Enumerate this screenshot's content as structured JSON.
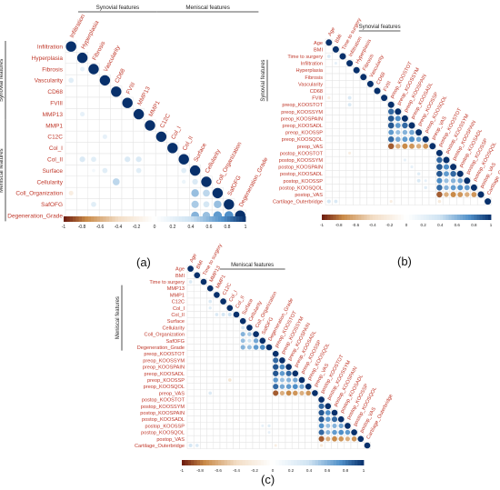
{
  "colors": {
    "positive_strong": "#08306b",
    "positive_mid": "#4f8fc8",
    "positive_light": "#cfe3f2",
    "neutral": "#ffffff",
    "negative_light": "#f2ddc5",
    "negative_mid": "#c98a48",
    "negative_strong": "#6b1a0e",
    "label_red": "#c0392b",
    "grid": "#e3e3e3"
  },
  "chart_data": [
    {
      "type": "heatmap",
      "panel_label": "(a)",
      "title": "",
      "variables": [
        "Infiltration",
        "Hyperplasia",
        "Fibrosis",
        "Vascularity",
        "CD68",
        "FVIII",
        "MMP13",
        "MMP1",
        "C12C",
        "Col_I",
        "Col_II",
        "Surface",
        "Cellularity",
        "Coll_Organization",
        "SafOFG",
        "Degeneration_Grade"
      ],
      "groups": [
        {
          "name": "Synovial features",
          "start": 0,
          "end": 6
        },
        {
          "name": "Meniscal features",
          "start": 7,
          "end": 15
        }
      ],
      "colorbar_ticks": [
        "-1",
        "-0.8",
        "-0.6",
        "-0.4",
        "-0.2",
        "0",
        "0.2",
        "0.4",
        "0.6",
        "0.8",
        "1"
      ],
      "cells": [
        [
          3,
          0,
          0.25
        ],
        [
          2,
          1,
          0.2
        ],
        [
          6,
          1,
          0.2
        ],
        [
          10,
          1,
          0.3
        ],
        [
          10,
          2,
          0.25
        ],
        [
          11,
          2,
          0.1
        ],
        [
          11,
          3,
          0.25
        ],
        [
          8,
          3,
          0.2
        ],
        [
          12,
          4,
          0.45
        ],
        [
          10,
          5,
          0.3
        ],
        [
          10,
          6,
          0.3
        ],
        [
          11,
          6,
          0.25
        ],
        [
          11,
          10,
          0.25
        ],
        [
          12,
          10,
          0.15
        ],
        [
          12,
          11,
          0.3
        ],
        [
          13,
          0,
          -0.2
        ],
        [
          13,
          11,
          0.55
        ],
        [
          13,
          12,
          0.45
        ],
        [
          14,
          2,
          0.25
        ],
        [
          14,
          11,
          0.5
        ],
        [
          14,
          12,
          0.35
        ],
        [
          14,
          13,
          0.55
        ],
        [
          15,
          11,
          0.6
        ],
        [
          15,
          12,
          0.55
        ],
        [
          15,
          13,
          0.7
        ],
        [
          15,
          14,
          0.75
        ]
      ]
    },
    {
      "type": "heatmap",
      "panel_label": "(b)",
      "title": "",
      "variables": [
        "Age",
        "BMI",
        "Time to surgery",
        "Infiltration",
        "Hyperplasia",
        "Fibrosis",
        "Vascularity",
        "CD68",
        "FVIII",
        "preop_KOOSTOT",
        "preop_KOOSSYM",
        "preop_KOOSPAIN",
        "preop_KOOSADL",
        "preop_KOOSSP",
        "preop_KOOSQOL",
        "preop_VAS",
        "postop_KOOSTOT",
        "postop_KOOSSYM",
        "postop_KOOSPAIN",
        "postop_KOOSADL",
        "postop_KOOSSP",
        "postop_KOOSQOL",
        "postop_VAS",
        "Cartilage_Outerbridge"
      ],
      "groups": [
        {
          "name": "Synovial features",
          "start": 3,
          "end": 8
        }
      ],
      "colorbar_ticks": [
        "-1",
        "-0.8",
        "-0.6",
        "-0.4",
        "-0.2",
        "0",
        "0.2",
        "0.4",
        "0.6",
        "0.8",
        "1"
      ],
      "cells": [
        [
          2,
          0,
          0.3
        ],
        [
          3,
          1,
          0.2
        ],
        [
          8,
          0,
          -0.2
        ],
        [
          8,
          3,
          0.3
        ],
        [
          9,
          3,
          0.3
        ],
        [
          10,
          9,
          0.85
        ],
        [
          11,
          9,
          0.9
        ],
        [
          11,
          10,
          0.75
        ],
        [
          12,
          9,
          0.9
        ],
        [
          12,
          10,
          0.7
        ],
        [
          12,
          11,
          0.85
        ],
        [
          13,
          9,
          0.7
        ],
        [
          13,
          10,
          0.55
        ],
        [
          13,
          11,
          0.6
        ],
        [
          13,
          12,
          0.65
        ],
        [
          14,
          9,
          0.85
        ],
        [
          14,
          10,
          0.65
        ],
        [
          14,
          11,
          0.7
        ],
        [
          14,
          12,
          0.75
        ],
        [
          14,
          13,
          0.65
        ],
        [
          15,
          9,
          -0.85
        ],
        [
          15,
          10,
          -0.6
        ],
        [
          15,
          11,
          -0.75
        ],
        [
          15,
          12,
          -0.7
        ],
        [
          15,
          13,
          -0.6
        ],
        [
          15,
          14,
          -0.7
        ],
        [
          16,
          3,
          -0.2
        ],
        [
          17,
          16,
          0.85
        ],
        [
          18,
          16,
          0.9
        ],
        [
          18,
          17,
          0.75
        ],
        [
          19,
          16,
          0.9
        ],
        [
          19,
          17,
          0.7
        ],
        [
          19,
          18,
          0.85
        ],
        [
          20,
          16,
          0.75
        ],
        [
          20,
          17,
          0.55
        ],
        [
          20,
          18,
          0.6
        ],
        [
          20,
          19,
          0.65
        ],
        [
          21,
          16,
          0.85
        ],
        [
          21,
          17,
          0.6
        ],
        [
          21,
          18,
          0.7
        ],
        [
          21,
          19,
          0.75
        ],
        [
          21,
          20,
          0.7
        ],
        [
          22,
          16,
          -0.85
        ],
        [
          22,
          17,
          -0.6
        ],
        [
          22,
          18,
          -0.75
        ],
        [
          22,
          19,
          -0.7
        ],
        [
          22,
          20,
          -0.6
        ],
        [
          22,
          21,
          -0.7
        ],
        [
          23,
          0,
          0.35
        ],
        [
          23,
          1,
          0.3
        ],
        [
          23,
          9,
          -0.2
        ],
        [
          23,
          16,
          -0.25
        ],
        [
          19,
          13,
          0.25
        ],
        [
          20,
          13,
          0.3
        ],
        [
          20,
          14,
          0.2
        ],
        [
          21,
          14,
          0.25
        ],
        [
          18,
          12,
          0.2
        ],
        [
          17,
          11,
          0.2
        ]
      ]
    },
    {
      "type": "heatmap",
      "panel_label": "(c)",
      "title": "",
      "variables": [
        "Age",
        "BMI",
        "Time to surgery",
        "MMP13",
        "MMP1",
        "C12C",
        "Col_I",
        "Col_II",
        "Surface",
        "Cellularity",
        "Coll_Organization",
        "SafOFG",
        "Degeneration_Grade",
        "preop_KOOSTOT",
        "preop_KOOSSYM",
        "preop_KOOSPAIN",
        "preop_KOOSADL",
        "preop_KOOSSP",
        "preop_KOOSQOL",
        "preop_VAS",
        "postop_KOOSTOT",
        "postop_KOOSSYM",
        "postop_KOOSPAIN",
        "postop_KOOSADL",
        "postop_KOOSSP",
        "postop_KOOSQOL",
        "postop_VAS",
        "Cartilage_Outerbridge"
      ],
      "groups": [
        {
          "name": "Meniscal features",
          "start": 3,
          "end": 12
        }
      ],
      "colorbar_ticks": [
        "-1",
        "-0.8",
        "-0.6",
        "-0.4",
        "-0.2",
        "0",
        "0.2",
        "0.4",
        "0.6",
        "0.8",
        "1"
      ],
      "cells": [
        [
          2,
          0,
          0.3
        ],
        [
          5,
          3,
          0.3
        ],
        [
          6,
          3,
          0.25
        ],
        [
          7,
          4,
          0.3
        ],
        [
          7,
          5,
          0.35
        ],
        [
          7,
          6,
          0.4
        ],
        [
          9,
          8,
          0.35
        ],
        [
          10,
          8,
          0.6
        ],
        [
          10,
          9,
          0.5
        ],
        [
          11,
          8,
          0.55
        ],
        [
          11,
          9,
          0.4
        ],
        [
          11,
          10,
          0.65
        ],
        [
          12,
          8,
          0.6
        ],
        [
          12,
          9,
          0.55
        ],
        [
          12,
          10,
          0.7
        ],
        [
          12,
          11,
          0.75
        ],
        [
          14,
          13,
          0.85
        ],
        [
          15,
          13,
          0.9
        ],
        [
          15,
          14,
          0.75
        ],
        [
          16,
          13,
          0.9
        ],
        [
          16,
          14,
          0.7
        ],
        [
          16,
          15,
          0.85
        ],
        [
          17,
          13,
          0.7
        ],
        [
          17,
          14,
          0.55
        ],
        [
          17,
          15,
          0.6
        ],
        [
          17,
          16,
          0.65
        ],
        [
          17,
          6,
          -0.3
        ],
        [
          18,
          13,
          0.85
        ],
        [
          18,
          14,
          0.65
        ],
        [
          18,
          15,
          0.7
        ],
        [
          18,
          16,
          0.75
        ],
        [
          18,
          17,
          0.65
        ],
        [
          19,
          13,
          -0.85
        ],
        [
          19,
          14,
          -0.6
        ],
        [
          19,
          15,
          -0.75
        ],
        [
          19,
          16,
          -0.7
        ],
        [
          19,
          17,
          -0.6
        ],
        [
          19,
          18,
          -0.7
        ],
        [
          19,
          3,
          0.3
        ],
        [
          21,
          20,
          0.85
        ],
        [
          22,
          20,
          0.9
        ],
        [
          22,
          21,
          0.75
        ],
        [
          23,
          20,
          0.9
        ],
        [
          23,
          21,
          0.7
        ],
        [
          23,
          22,
          0.85
        ],
        [
          24,
          20,
          0.75
        ],
        [
          24,
          21,
          0.55
        ],
        [
          24,
          22,
          0.6
        ],
        [
          24,
          23,
          0.65
        ],
        [
          24,
          11,
          0.2
        ],
        [
          24,
          12,
          0.25
        ],
        [
          25,
          20,
          0.85
        ],
        [
          25,
          21,
          0.6
        ],
        [
          25,
          22,
          0.7
        ],
        [
          25,
          23,
          0.75
        ],
        [
          25,
          24,
          0.7
        ],
        [
          25,
          12,
          0.2
        ],
        [
          26,
          20,
          -0.85
        ],
        [
          26,
          21,
          -0.6
        ],
        [
          26,
          22,
          -0.75
        ],
        [
          26,
          23,
          -0.7
        ],
        [
          26,
          24,
          -0.6
        ],
        [
          26,
          25,
          -0.7
        ],
        [
          27,
          0,
          0.35
        ],
        [
          27,
          1,
          0.3
        ],
        [
          27,
          13,
          -0.2
        ],
        [
          27,
          20,
          -0.25
        ]
      ]
    }
  ]
}
